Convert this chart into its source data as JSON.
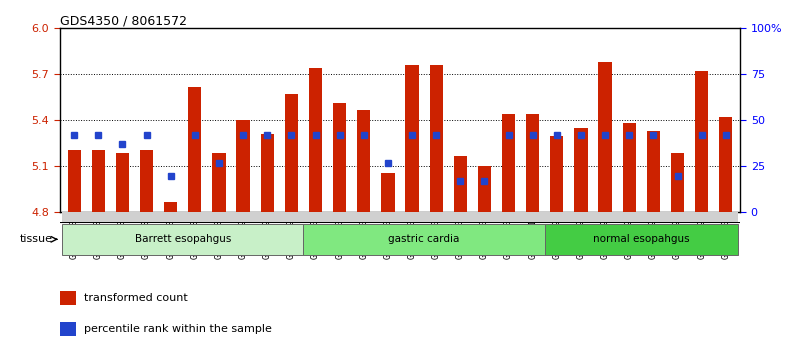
{
  "title": "GDS4350 / 8061572",
  "samples": [
    "GSM851983",
    "GSM851984",
    "GSM851985",
    "GSM851986",
    "GSM851987",
    "GSM851988",
    "GSM851989",
    "GSM851990",
    "GSM851991",
    "GSM851992",
    "GSM852001",
    "GSM852002",
    "GSM852003",
    "GSM852004",
    "GSM852005",
    "GSM852006",
    "GSM852007",
    "GSM852008",
    "GSM852009",
    "GSM852010",
    "GSM851993",
    "GSM851994",
    "GSM851995",
    "GSM851996",
    "GSM851997",
    "GSM851998",
    "GSM851999",
    "GSM852000"
  ],
  "red_values": [
    5.21,
    5.21,
    5.19,
    5.21,
    4.87,
    5.62,
    5.19,
    5.4,
    5.31,
    5.57,
    5.74,
    5.51,
    5.47,
    5.06,
    5.76,
    5.76,
    5.17,
    5.1,
    5.44,
    5.44,
    5.3,
    5.35,
    5.78,
    5.38,
    5.33,
    5.19,
    5.72,
    5.42
  ],
  "blue_percentiles": [
    42,
    42,
    37,
    42,
    20,
    42,
    27,
    42,
    42,
    42,
    42,
    42,
    42,
    27,
    42,
    42,
    17,
    17,
    42,
    42,
    42,
    42,
    42,
    42,
    42,
    20,
    42,
    42
  ],
  "groups": [
    {
      "label": "Barrett esopahgus",
      "start": 0,
      "end": 10,
      "color": "#c8f0c8"
    },
    {
      "label": "gastric cardia",
      "start": 10,
      "end": 20,
      "color": "#80e880"
    },
    {
      "label": "normal esopahgus",
      "start": 20,
      "end": 28,
      "color": "#44cc44"
    }
  ],
  "ylim": [
    4.8,
    6.0
  ],
  "yticks_left": [
    4.8,
    5.1,
    5.4,
    5.7,
    6.0
  ],
  "yticks_right": [
    0,
    25,
    50,
    75,
    100
  ],
  "ytick_labels_right": [
    "0",
    "25",
    "50",
    "75",
    "100%"
  ],
  "red_color": "#cc2200",
  "blue_color": "#2244cc",
  "bar_width": 0.55
}
